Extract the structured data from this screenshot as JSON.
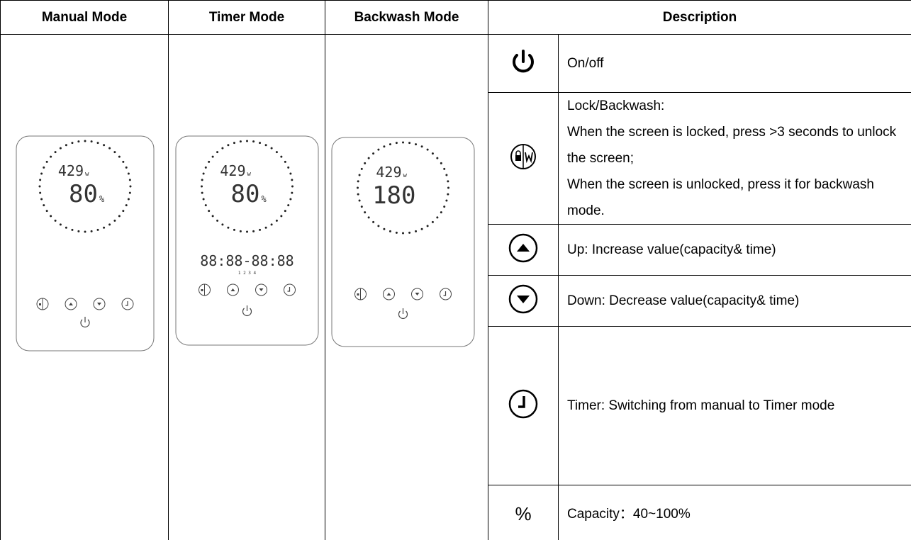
{
  "table": {
    "headers": [
      "Manual Mode",
      "Timer Mode",
      "Backwash Mode",
      "Description"
    ],
    "rows": [
      {
        "text": [
          "On/off"
        ]
      },
      {
        "text": [
          "Lock/Backwash:",
          "When the screen is locked, press >3 seconds to unlock the screen;",
          "When the screen is unlocked, press it for backwash mode."
        ]
      },
      {
        "text": [
          "Up: Increase value(capacity& time)"
        ]
      },
      {
        "text": [
          "Down: Decrease value(capacity& time)"
        ]
      },
      {
        "text": [
          "Timer: Switching from manual to Timer mode"
        ]
      },
      {
        "icon": "%",
        "text": [
          "Capacity：40~100%"
        ]
      }
    ]
  },
  "panels": [
    {
      "power": "429",
      "power_unit": "w",
      "value": "80",
      "value_unit": "%"
    },
    {
      "power": "429",
      "power_unit": "w",
      "value": "80",
      "value_unit": "%",
      "schedule": "88:88-88:88",
      "slots": "1 2 3 4"
    },
    {
      "power": "429",
      "power_unit": "w",
      "value": "180"
    }
  ]
}
